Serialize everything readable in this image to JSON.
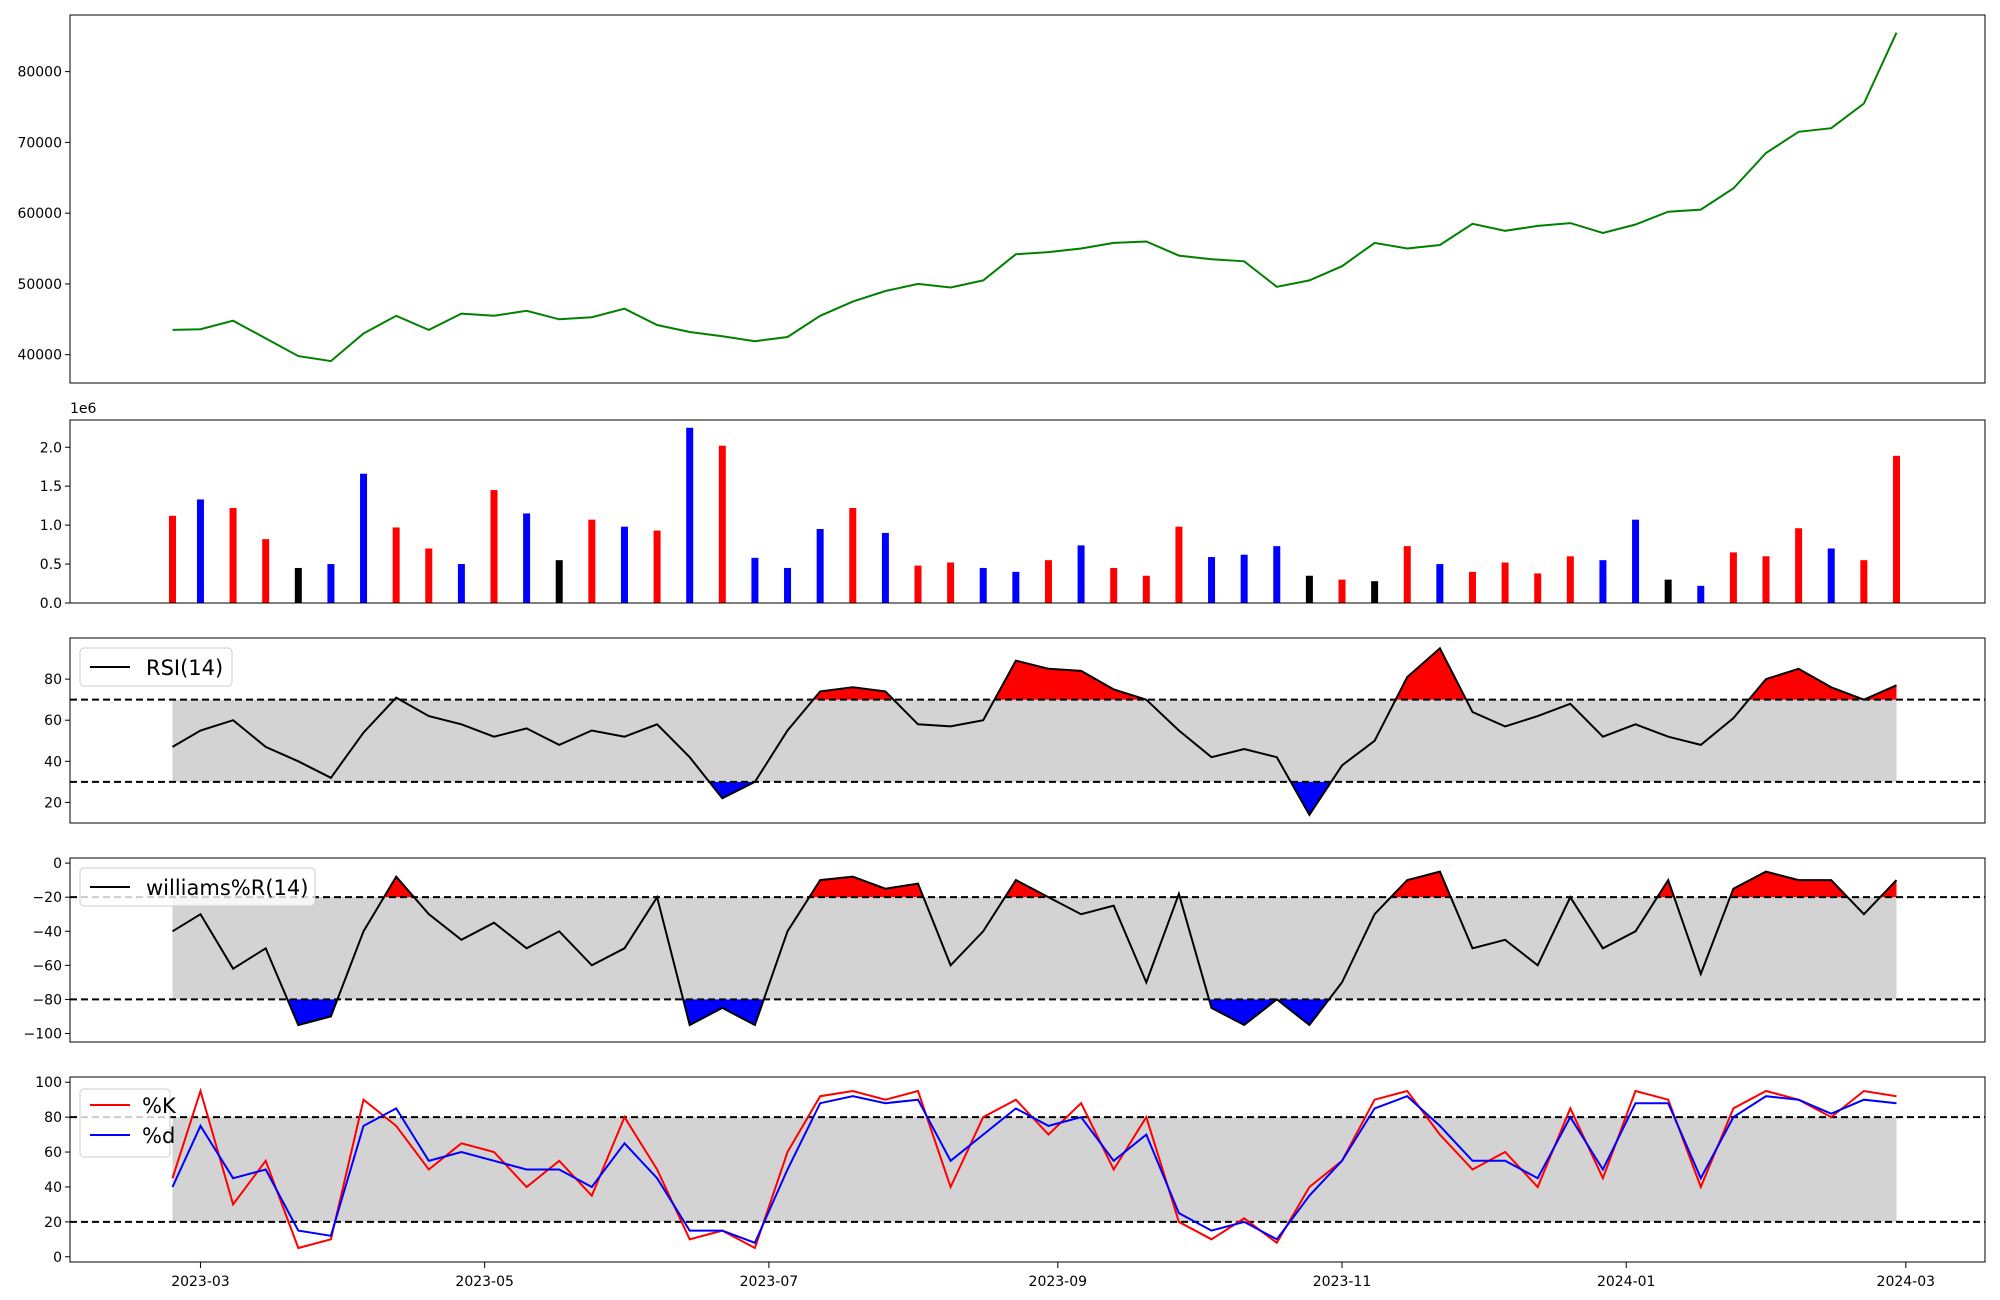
{
  "chart_data": [
    {
      "type": "line",
      "panel": "price",
      "y_ticks": [
        "40000",
        "50000",
        "60000",
        "70000",
        "80000"
      ],
      "ylim": [
        36000,
        88000
      ],
      "series": [
        {
          "color": "#008000",
          "x": [
            "2023-02-23",
            "2023-03-01",
            "2023-03-08",
            "2023-03-15",
            "2023-03-22",
            "2023-03-29",
            "2023-04-05",
            "2023-04-12",
            "2023-04-19",
            "2023-04-26",
            "2023-05-03",
            "2023-05-10",
            "2023-05-17",
            "2023-05-24",
            "2023-05-31",
            "2023-06-07",
            "2023-06-14",
            "2023-06-21",
            "2023-06-28",
            "2023-07-05",
            "2023-07-12",
            "2023-07-19",
            "2023-07-26",
            "2023-08-02",
            "2023-08-09",
            "2023-08-16",
            "2023-08-23",
            "2023-08-30",
            "2023-09-06",
            "2023-09-13",
            "2023-09-20",
            "2023-09-27",
            "2023-10-04",
            "2023-10-11",
            "2023-10-18",
            "2023-10-25",
            "2023-11-01",
            "2023-11-08",
            "2023-11-15",
            "2023-11-22",
            "2023-11-29",
            "2023-12-06",
            "2023-12-13",
            "2023-12-20",
            "2023-12-27",
            "2024-01-03",
            "2024-01-10",
            "2024-01-17",
            "2024-01-24",
            "2024-01-31",
            "2024-02-07",
            "2024-02-14",
            "2024-02-21",
            "2024-02-28"
          ],
          "values": [
            43500,
            43600,
            44800,
            42300,
            39800,
            39100,
            43000,
            45500,
            43500,
            45800,
            45500,
            46200,
            45000,
            45300,
            46500,
            44200,
            43200,
            42600,
            41900,
            42500,
            45500,
            47500,
            49000,
            50000,
            49500,
            50500,
            54200,
            54500,
            55000,
            55800,
            56000,
            54000,
            53500,
            53200,
            49600,
            50500,
            52500,
            55800,
            55000,
            55500,
            58500,
            57500,
            58200,
            58600,
            57200,
            58400,
            60200,
            60500,
            63500,
            68500,
            71500,
            72000,
            75500,
            85500
          ]
        }
      ]
    },
    {
      "type": "bar",
      "panel": "volume",
      "offset_label": "1e6",
      "y_ticks": [
        "0.0",
        "0.5",
        "1.0",
        "1.5",
        "2.0"
      ],
      "ylim": [
        0,
        2.35
      ],
      "colors": {
        "up": "#ff0000",
        "down": "#0000ff",
        "flat": "#000000"
      },
      "x": [
        "2023-02-23",
        "2023-03-01",
        "2023-03-08",
        "2023-03-15",
        "2023-03-22",
        "2023-03-29",
        "2023-04-05",
        "2023-04-12",
        "2023-04-19",
        "2023-04-26",
        "2023-05-03",
        "2023-05-10",
        "2023-05-17",
        "2023-05-24",
        "2023-05-31",
        "2023-06-07",
        "2023-06-14",
        "2023-06-21",
        "2023-06-28",
        "2023-07-05",
        "2023-07-12",
        "2023-07-19",
        "2023-07-26",
        "2023-08-02",
        "2023-08-09",
        "2023-08-16",
        "2023-08-23",
        "2023-08-30",
        "2023-09-06",
        "2023-09-13",
        "2023-09-20",
        "2023-09-27",
        "2023-10-04",
        "2023-10-11",
        "2023-10-18",
        "2023-10-25",
        "2023-11-01",
        "2023-11-08",
        "2023-11-15",
        "2023-11-22",
        "2023-11-29",
        "2023-12-06",
        "2023-12-13",
        "2023-12-20",
        "2023-12-27",
        "2024-01-03",
        "2024-01-10",
        "2024-01-17",
        "2024-01-24",
        "2024-01-31",
        "2024-02-07",
        "2024-02-14",
        "2024-02-21",
        "2024-02-28"
      ],
      "values": [
        1.12,
        1.33,
        1.22,
        0.82,
        0.45,
        0.5,
        1.66,
        0.97,
        0.7,
        0.5,
        1.45,
        1.15,
        0.55,
        1.07,
        0.98,
        0.93,
        2.25,
        2.02,
        0.58,
        0.45,
        0.95,
        1.22,
        0.9,
        0.48,
        0.52,
        0.45,
        0.4,
        0.55,
        0.74,
        0.45,
        0.35,
        0.98,
        0.59,
        0.62,
        0.73,
        0.35,
        0.3,
        0.28,
        0.73,
        0.5,
        0.4,
        0.52,
        0.38,
        0.6,
        0.55,
        1.07,
        0.3,
        0.22,
        0.65,
        0.6,
        0.96,
        0.7,
        0.55,
        1.89
      ],
      "dirs": [
        "up",
        "down",
        "up",
        "up",
        "flat",
        "down",
        "down",
        "up",
        "up",
        "down",
        "up",
        "down",
        "flat",
        "up",
        "down",
        "up",
        "down",
        "up",
        "down",
        "down",
        "down",
        "up",
        "down",
        "up",
        "up",
        "down",
        "down",
        "up",
        "down",
        "up",
        "up",
        "up",
        "down",
        "down",
        "down",
        "flat",
        "up",
        "flat",
        "up",
        "down",
        "up",
        "up",
        "up",
        "up",
        "down",
        "down",
        "flat",
        "down",
        "up",
        "up",
        "up",
        "down",
        "up",
        "up"
      ]
    },
    {
      "type": "line",
      "panel": "rsi",
      "legend": "RSI(14)",
      "y_ticks": [
        "20",
        "40",
        "60",
        "80"
      ],
      "ylim": [
        10,
        100
      ],
      "thresholds": [
        30,
        70
      ],
      "x": [
        "2023-02-23",
        "2023-03-01",
        "2023-03-08",
        "2023-03-15",
        "2023-03-22",
        "2023-03-29",
        "2023-04-05",
        "2023-04-12",
        "2023-04-19",
        "2023-04-26",
        "2023-05-03",
        "2023-05-10",
        "2023-05-17",
        "2023-05-24",
        "2023-05-31",
        "2023-06-07",
        "2023-06-14",
        "2023-06-21",
        "2023-06-28",
        "2023-07-05",
        "2023-07-12",
        "2023-07-19",
        "2023-07-26",
        "2023-08-02",
        "2023-08-09",
        "2023-08-16",
        "2023-08-23",
        "2023-08-30",
        "2023-09-06",
        "2023-09-13",
        "2023-09-20",
        "2023-09-27",
        "2023-10-04",
        "2023-10-11",
        "2023-10-18",
        "2023-10-25",
        "2023-11-01",
        "2023-11-08",
        "2023-11-15",
        "2023-11-22",
        "2023-11-29",
        "2023-12-06",
        "2023-12-13",
        "2023-12-20",
        "2023-12-27",
        "2024-01-03",
        "2024-01-10",
        "2024-01-17",
        "2024-01-24",
        "2024-01-31",
        "2024-02-07",
        "2024-02-14",
        "2024-02-21",
        "2024-02-28"
      ],
      "values": [
        47,
        55,
        60,
        47,
        40,
        32,
        54,
        71,
        62,
        58,
        52,
        56,
        48,
        55,
        52,
        58,
        42,
        22,
        30,
        55,
        74,
        76,
        74,
        58,
        57,
        60,
        89,
        85,
        84,
        75,
        70,
        55,
        42,
        46,
        42,
        14,
        38,
        50,
        81,
        95,
        64,
        57,
        62,
        68,
        52,
        58,
        52,
        48,
        61,
        80,
        85,
        76,
        70,
        77
      ]
    },
    {
      "type": "line",
      "panel": "williams",
      "legend": "williams%R(14)",
      "y_ticks": [
        "0",
        "−20",
        "−40",
        "−60",
        "−80",
        "−100"
      ],
      "ylim": [
        -105,
        3
      ],
      "thresholds": [
        -20,
        -80
      ],
      "x": [
        "2023-02-23",
        "2023-03-01",
        "2023-03-08",
        "2023-03-15",
        "2023-03-22",
        "2023-03-29",
        "2023-04-05",
        "2023-04-12",
        "2023-04-19",
        "2023-04-26",
        "2023-05-03",
        "2023-05-10",
        "2023-05-17",
        "2023-05-24",
        "2023-05-31",
        "2023-06-07",
        "2023-06-14",
        "2023-06-21",
        "2023-06-28",
        "2023-07-05",
        "2023-07-12",
        "2023-07-19",
        "2023-07-26",
        "2023-08-02",
        "2023-08-09",
        "2023-08-16",
        "2023-08-23",
        "2023-08-30",
        "2023-09-06",
        "2023-09-13",
        "2023-09-20",
        "2023-09-27",
        "2023-10-04",
        "2023-10-11",
        "2023-10-18",
        "2023-10-25",
        "2023-11-01",
        "2023-11-08",
        "2023-11-15",
        "2023-11-22",
        "2023-11-29",
        "2023-12-06",
        "2023-12-13",
        "2023-12-20",
        "2023-12-27",
        "2024-01-03",
        "2024-01-10",
        "2024-01-17",
        "2024-01-24",
        "2024-01-31",
        "2024-02-07",
        "2024-02-14",
        "2024-02-21",
        "2024-02-28"
      ],
      "values": [
        -40,
        -30,
        -62,
        -50,
        -95,
        -90,
        -40,
        -8,
        -30,
        -45,
        -35,
        -50,
        -40,
        -60,
        -50,
        -20,
        -95,
        -85,
        -95,
        -40,
        -10,
        -8,
        -15,
        -12,
        -60,
        -40,
        -10,
        -20,
        -30,
        -25,
        -70,
        -18,
        -85,
        -95,
        -80,
        -95,
        -70,
        -30,
        -10,
        -5,
        -50,
        -45,
        -60,
        -20,
        -50,
        -40,
        -10,
        -65,
        -15,
        -5,
        -10,
        -10,
        -30,
        -10
      ]
    },
    {
      "type": "line",
      "panel": "stochastic",
      "y_ticks": [
        "0",
        "20",
        "40",
        "60",
        "80",
        "100"
      ],
      "ylim": [
        -3,
        103
      ],
      "thresholds": [
        20,
        80
      ],
      "x": [
        "2023-02-23",
        "2023-03-01",
        "2023-03-08",
        "2023-03-15",
        "2023-03-22",
        "2023-03-29",
        "2023-04-05",
        "2023-04-12",
        "2023-04-19",
        "2023-04-26",
        "2023-05-03",
        "2023-05-10",
        "2023-05-17",
        "2023-05-24",
        "2023-05-31",
        "2023-06-07",
        "2023-06-14",
        "2023-06-21",
        "2023-06-28",
        "2023-07-05",
        "2023-07-12",
        "2023-07-19",
        "2023-07-26",
        "2023-08-02",
        "2023-08-09",
        "2023-08-16",
        "2023-08-23",
        "2023-08-30",
        "2023-09-06",
        "2023-09-13",
        "2023-09-20",
        "2023-09-27",
        "2023-10-04",
        "2023-10-11",
        "2023-10-18",
        "2023-10-25",
        "2023-11-01",
        "2023-11-08",
        "2023-11-15",
        "2023-11-22",
        "2023-11-29",
        "2023-12-06",
        "2023-12-13",
        "2023-12-20",
        "2023-12-27",
        "2024-01-03",
        "2024-01-10",
        "2024-01-17",
        "2024-01-24",
        "2024-01-31",
        "2024-02-07",
        "2024-02-14",
        "2024-02-21",
        "2024-02-28"
      ],
      "series": [
        {
          "name": "%K",
          "color": "#ff0000",
          "values": [
            45,
            95,
            30,
            55,
            5,
            10,
            90,
            75,
            50,
            65,
            60,
            40,
            55,
            35,
            80,
            50,
            10,
            15,
            5,
            60,
            92,
            95,
            90,
            95,
            40,
            80,
            90,
            70,
            88,
            50,
            80,
            20,
            10,
            22,
            8,
            40,
            55,
            90,
            95,
            70,
            50,
            60,
            40,
            85,
            45,
            95,
            90,
            40,
            85,
            95,
            90,
            80,
            95,
            92
          ]
        },
        {
          "name": "%d",
          "color": "#0000ff",
          "values": [
            40,
            75,
            45,
            50,
            15,
            12,
            75,
            85,
            55,
            60,
            55,
            50,
            50,
            40,
            65,
            45,
            15,
            15,
            8,
            50,
            88,
            92,
            88,
            90,
            55,
            70,
            85,
            75,
            80,
            55,
            70,
            25,
            15,
            20,
            10,
            35,
            55,
            85,
            92,
            75,
            55,
            55,
            45,
            80,
            50,
            88,
            88,
            45,
            80,
            92,
            90,
            82,
            90,
            88
          ]
        }
      ]
    }
  ],
  "x_axis": {
    "tick_labels": [
      "2023-03",
      "2023-05",
      "2023-07",
      "2023-09",
      "2023-11",
      "2024-01",
      "2024-03"
    ],
    "tick_dates": [
      "2023-03-01",
      "2023-05-01",
      "2023-07-01",
      "2023-09-01",
      "2023-11-01",
      "2024-01-01",
      "2024-03-01"
    ],
    "xlim": [
      "2023-02-01",
      "2024-03-18"
    ]
  },
  "colors": {
    "fill_band": "#d3d3d3",
    "overbought": "#ff0000",
    "oversold": "#0000ff",
    "line": "#000000"
  }
}
